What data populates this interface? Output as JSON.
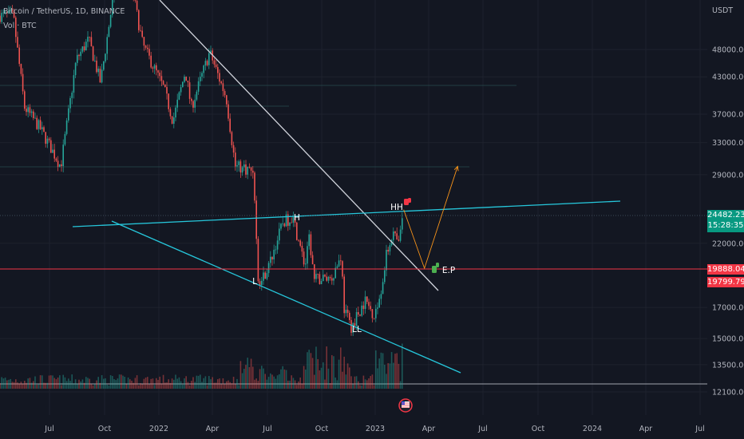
{
  "header": {
    "symbol_line": "Bitcoin / TetherUS, 1D, BINANCE",
    "indicator_line": "Vol · BTC"
  },
  "axis": {
    "currency": "USDT",
    "y_ticks": [
      "48000.00",
      "43000.00",
      "37000.00",
      "33000.00",
      "29000.00",
      "22000.00",
      "17000.00",
      "15000.00",
      "13500.00",
      "12100.00"
    ],
    "x_ticks": [
      "Jul",
      "Oct",
      "2022",
      "Apr",
      "Jul",
      "Oct",
      "2023",
      "Apr",
      "Jul",
      "Oct",
      "2024",
      "Apr",
      "Jul"
    ]
  },
  "price_tags": {
    "last_price": "24482.23",
    "countdown": "15:28:35",
    "level_1": "19888.04",
    "level_2": "19799.79",
    "last_color": "#089981",
    "level_color": "#f23645"
  },
  "annotations": {
    "label_h": "H",
    "label_l": "L",
    "label_ll": "LL",
    "label_hh": "HH",
    "label_ep": "E.P"
  },
  "colors": {
    "background": "#131722",
    "up_candle": "#26a69a",
    "down_candle": "#ef5350",
    "trendline_white": "#d1d4dc",
    "trendline_cyan": "#26c6da",
    "support_red": "#f23645",
    "projection": "#f7931a"
  },
  "chart_data": {
    "type": "candlestick",
    "symbol": "Bitcoin / TetherUS",
    "interval": "1D",
    "exchange": "BINANCE",
    "y_scale": "log",
    "ylim": [
      11800,
      62000
    ],
    "x_ticks": [
      "Jul",
      "Oct",
      "2022",
      "Apr",
      "Jul",
      "Oct",
      "2023",
      "Apr",
      "Jul",
      "Oct",
      "2024",
      "Apr",
      "Jul"
    ],
    "price_path": [
      {
        "date": "2021-05-01",
        "close": 55000
      },
      {
        "date": "2021-05-20",
        "close": 38000
      },
      {
        "date": "2021-06-15",
        "close": 35000
      },
      {
        "date": "2021-07-20",
        "close": 30000
      },
      {
        "date": "2021-08-15",
        "close": 46000
      },
      {
        "date": "2021-09-05",
        "close": 50000
      },
      {
        "date": "2021-09-25",
        "close": 42000
      },
      {
        "date": "2021-10-20",
        "close": 63000
      },
      {
        "date": "2021-11-10",
        "close": 67000
      },
      {
        "date": "2021-12-05",
        "close": 49000
      },
      {
        "date": "2022-01-10",
        "close": 41000
      },
      {
        "date": "2022-01-25",
        "close": 36000
      },
      {
        "date": "2022-02-15",
        "close": 44000
      },
      {
        "date": "2022-02-25",
        "close": 38000
      },
      {
        "date": "2022-03-28",
        "close": 47500
      },
      {
        "date": "2022-04-25",
        "close": 39500
      },
      {
        "date": "2022-05-10",
        "close": 30000
      },
      {
        "date": "2022-06-10",
        "close": 29500
      },
      {
        "date": "2022-06-18",
        "close": 18500
      },
      {
        "date": "2022-07-05",
        "close": 20000
      },
      {
        "date": "2022-07-30",
        "close": 24000
      },
      {
        "date": "2022-08-15",
        "close": 24400
      },
      {
        "date": "2022-09-05",
        "close": 20000
      },
      {
        "date": "2022-09-12",
        "close": 22500
      },
      {
        "date": "2022-09-20",
        "close": 19000
      },
      {
        "date": "2022-10-20",
        "close": 19200
      },
      {
        "date": "2022-11-05",
        "close": 21000
      },
      {
        "date": "2022-11-09",
        "close": 17000
      },
      {
        "date": "2022-11-21",
        "close": 15700
      },
      {
        "date": "2022-12-15",
        "close": 17500
      },
      {
        "date": "2022-12-30",
        "close": 16500
      },
      {
        "date": "2023-01-12",
        "close": 18500
      },
      {
        "date": "2023-01-20",
        "close": 21000
      },
      {
        "date": "2023-01-30",
        "close": 23000
      },
      {
        "date": "2023-02-10",
        "close": 21800
      },
      {
        "date": "2023-02-16",
        "close": 24700
      },
      {
        "date": "2023-02-18",
        "close": 24482.23
      }
    ],
    "horizontal_levels": [
      {
        "label": "19888.04",
        "value": 19888.04
      },
      {
        "label": "19799.79",
        "value": 19799.79
      }
    ],
    "annotations": [
      {
        "label": "H",
        "date": "2022-08-15",
        "value": 24400
      },
      {
        "label": "L",
        "date": "2022-06-18",
        "value": 18500
      },
      {
        "label": "LL",
        "date": "2022-11-21",
        "value": 15700
      },
      {
        "label": "HH",
        "date": "2023-02-16",
        "value": 24700
      },
      {
        "label": "E.P",
        "date": "2023-03-25",
        "value": 19900
      }
    ],
    "projection": [
      {
        "date": "2023-02-18",
        "value": 25200
      },
      {
        "date": "2023-03-25",
        "value": 19900
      },
      {
        "date": "2023-05-20",
        "value": 30000
      }
    ],
    "grid": true,
    "volume_pane": true
  }
}
